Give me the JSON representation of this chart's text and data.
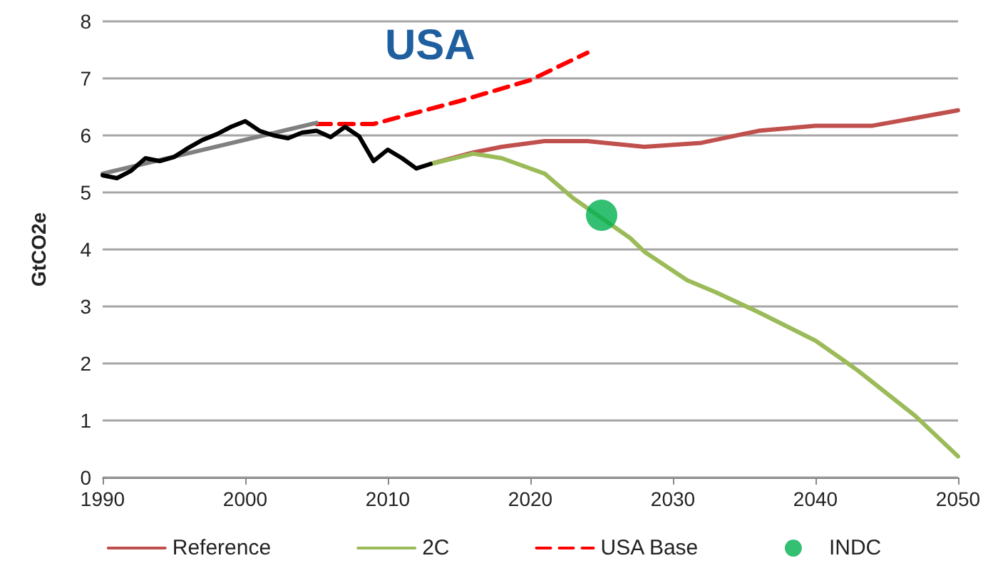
{
  "chart_data": {
    "type": "line",
    "title": "USA",
    "ylabel": "GtCO2e",
    "xlim": [
      1990,
      2050
    ],
    "xticks": [
      1990,
      2000,
      2010,
      2020,
      2030,
      2040,
      2050
    ],
    "ylim": [
      0,
      8
    ],
    "yticks": [
      0,
      1,
      2,
      3,
      4,
      5,
      6,
      7,
      8
    ],
    "grid": "y",
    "legend": "bottom",
    "marker": "none",
    "series": [
      {
        "name": "Reference",
        "color": "#c0504d",
        "x": [
          2013,
          2016,
          2018,
          2021,
          2024,
          2028,
          2032,
          2036,
          2040,
          2044,
          2050
        ],
        "values": [
          5.5,
          5.7,
          5.8,
          5.9,
          5.9,
          5.8,
          5.87,
          6.08,
          6.17,
          6.17,
          6.44
        ]
      },
      {
        "name": "2C",
        "color": "#9bbb59",
        "x": [
          2013,
          2016,
          2018,
          2021,
          2023,
          2027,
          2028,
          2031,
          2033,
          2036,
          2040,
          2042,
          2043,
          2047,
          2050
        ],
        "values": [
          5.5,
          5.68,
          5.6,
          5.33,
          4.9,
          4.2,
          3.96,
          3.46,
          3.25,
          2.9,
          2.4,
          2.05,
          1.87,
          1.08,
          0.37
        ]
      },
      {
        "name": "USA Base",
        "color": "#ff0000",
        "line_style": "dashed",
        "x": [
          2005,
          2009,
          2015,
          2020,
          2024
        ],
        "values": [
          6.2,
          6.2,
          6.6,
          6.97,
          7.45
        ]
      },
      {
        "name": "INDC",
        "type": "scatter",
        "marker": "circle",
        "color": "#00b050",
        "x": [
          2025
        ],
        "values": [
          4.6
        ]
      },
      {
        "color": "#808080",
        "x": [
          1990,
          2005
        ],
        "values": [
          5.33,
          6.22
        ]
      },
      {
        "color": "#000000",
        "x": [
          1990,
          1991,
          1992,
          1993,
          1994,
          1995,
          1996,
          1997,
          1998,
          1999,
          2000,
          2001,
          2002,
          2003,
          2004,
          2005,
          2006,
          2007,
          2008,
          2009,
          2010,
          2011,
          2012,
          2013
        ],
        "values": [
          5.3,
          5.25,
          5.38,
          5.6,
          5.55,
          5.62,
          5.78,
          5.92,
          6.02,
          6.15,
          6.25,
          6.08,
          6.0,
          5.95,
          6.05,
          6.08,
          5.97,
          6.15,
          5.98,
          5.55,
          5.75,
          5.6,
          5.42,
          5.5
        ]
      }
    ]
  }
}
